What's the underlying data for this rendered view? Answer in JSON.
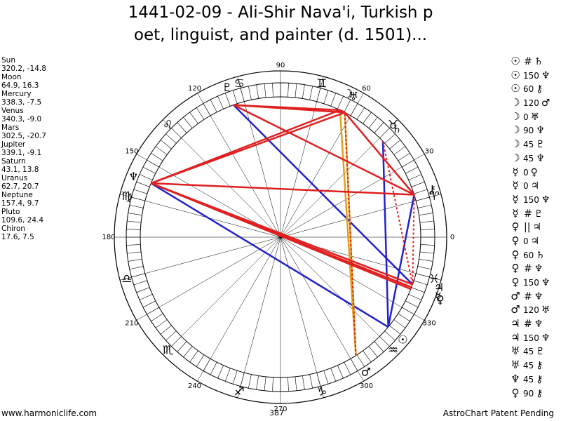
{
  "title": {
    "line1": "1441-02-09 - Ali-Shir Nava'i, Turkish p",
    "line2": "oet, linguist, and painter (d. 1501)..."
  },
  "planets": [
    {
      "name": "Sun",
      "position": "320.2, -14.8",
      "lon": 320.2,
      "glyph": "☉"
    },
    {
      "name": "Moon",
      "position": "64.9, 16.3",
      "lon": 64.9,
      "glyph": "☽"
    },
    {
      "name": "Mercury",
      "position": "338.3, -7.5",
      "lon": 338.3,
      "glyph": "☿"
    },
    {
      "name": "Venus",
      "position": "340.3, -9.0",
      "lon": 340.3,
      "glyph": "♀"
    },
    {
      "name": "Mars",
      "position": "302.5, -20.7",
      "lon": 302.5,
      "glyph": "♂"
    },
    {
      "name": "Jupiter",
      "position": "339.1, -9.1",
      "lon": 339.1,
      "glyph": "♃"
    },
    {
      "name": "Saturn",
      "position": "43.1, 13.8",
      "lon": 43.1,
      "glyph": "♄"
    },
    {
      "name": "Uranus",
      "position": "62.7, 20.7",
      "lon": 62.7,
      "glyph": "♅"
    },
    {
      "name": "Neptune",
      "position": "157.4, 9.7",
      "lon": 157.4,
      "glyph": "♆"
    },
    {
      "name": "Pluto",
      "position": "109.6, 24.4",
      "lon": 109.6,
      "glyph": "♇"
    },
    {
      "name": "Chiron",
      "position": "17.6, 7.5",
      "lon": 17.6,
      "glyph": "⚷"
    }
  ],
  "aspects": [
    {
      "g1": "☉",
      "angle": "",
      "g2": "#",
      "p2": "♄"
    },
    {
      "g1": "☉",
      "angle": "150",
      "g2": "♆",
      "p2": ""
    },
    {
      "g1": "☉",
      "angle": "60",
      "g2": "⚷",
      "p2": ""
    },
    {
      "g1": "☽",
      "angle": "120",
      "g2": "♂",
      "p2": ""
    },
    {
      "g1": "☽",
      "angle": "0",
      "g2": "♅",
      "p2": ""
    },
    {
      "g1": "☽",
      "angle": "90",
      "g2": "♆",
      "p2": ""
    },
    {
      "g1": "☽",
      "angle": "45",
      "g2": "♇",
      "p2": ""
    },
    {
      "g1": "☽",
      "angle": "45",
      "g2": "♆",
      "p2": ""
    },
    {
      "g1": "☿",
      "angle": "0",
      "g2": "♀",
      "p2": ""
    },
    {
      "g1": "☿",
      "angle": "0",
      "g2": "♃",
      "p2": ""
    },
    {
      "g1": "☿",
      "angle": "150",
      "g2": "♆",
      "p2": ""
    },
    {
      "g1": "☿",
      "angle": "",
      "g2": "#",
      "p2": "♇"
    },
    {
      "g1": "♀",
      "angle": "",
      "g2": "||",
      "p2": "♃"
    },
    {
      "g1": "♀",
      "angle": "0",
      "g2": "♃",
      "p2": ""
    },
    {
      "g1": "♀",
      "angle": "60",
      "g2": "♄",
      "p2": ""
    },
    {
      "g1": "♀",
      "angle": "",
      "g2": "#",
      "p2": "♆"
    },
    {
      "g1": "♀",
      "angle": "150",
      "g2": "♆",
      "p2": ""
    },
    {
      "g1": "♂",
      "angle": "",
      "g2": "#",
      "p2": "♆"
    },
    {
      "g1": "♂",
      "angle": "120",
      "g2": "♅",
      "p2": ""
    },
    {
      "g1": "♃",
      "angle": "",
      "g2": "#",
      "p2": "♆"
    },
    {
      "g1": "♃",
      "angle": "150",
      "g2": "♆",
      "p2": ""
    },
    {
      "g1": "♅",
      "angle": "45",
      "g2": "♇",
      "p2": ""
    },
    {
      "g1": "♅",
      "angle": "45",
      "g2": "⚷",
      "p2": ""
    },
    {
      "g1": "♆",
      "angle": "45",
      "g2": "⚷",
      "p2": ""
    },
    {
      "g1": "♀",
      "angle": "90",
      "g2": "⚷",
      "p2": ""
    }
  ],
  "degree_labels": [
    {
      "text": "0",
      "deg": 0
    },
    {
      "text": "30",
      "deg": 30
    },
    {
      "text": "60",
      "deg": 60
    },
    {
      "text": "90",
      "deg": 90
    },
    {
      "text": "120",
      "deg": 120
    },
    {
      "text": "150",
      "deg": 150
    },
    {
      "text": "180",
      "deg": 180
    },
    {
      "text": "210",
      "deg": 210
    },
    {
      "text": "240",
      "deg": 240
    },
    {
      "text": "270",
      "deg": 270
    },
    {
      "text": "300",
      "deg": 300
    },
    {
      "text": "330",
      "deg": 330
    }
  ],
  "signs": [
    {
      "glyph": "♈",
      "lon": 15
    },
    {
      "glyph": "♉",
      "lon": 45
    },
    {
      "glyph": "♊",
      "lon": 75
    },
    {
      "glyph": "♋",
      "lon": 105
    },
    {
      "glyph": "♌",
      "lon": 135
    },
    {
      "glyph": "♍",
      "lon": 165
    },
    {
      "glyph": "♎",
      "lon": 195
    },
    {
      "glyph": "♏",
      "lon": 225
    },
    {
      "glyph": "♐",
      "lon": 255
    },
    {
      "glyph": "♑",
      "lon": 285
    },
    {
      "glyph": "♒",
      "lon": 315
    },
    {
      "glyph": "♓",
      "lon": 345
    }
  ],
  "aspect_lines": [
    {
      "a": "Sun",
      "b": "Saturn",
      "color": "#2222cc",
      "style": "solid"
    },
    {
      "a": "Sun",
      "b": "Neptune",
      "color": "#2222cc",
      "style": "solid"
    },
    {
      "a": "Sun",
      "b": "Chiron",
      "color": "#2222cc",
      "style": "solid"
    },
    {
      "a": "Pluto",
      "b": "Venus",
      "color": "#2222cc",
      "style": "solid"
    },
    {
      "a": "Uranus",
      "b": "Mars",
      "color": "#e0a020",
      "style": "solid"
    },
    {
      "a": "Moon",
      "b": "Mars",
      "color": "#e0a020",
      "style": "solid"
    },
    {
      "a": "Moon",
      "b": "Uranus",
      "color": "#e02020",
      "style": "solid"
    },
    {
      "a": "Moon",
      "b": "Pluto",
      "color": "#e02020",
      "style": "solid"
    },
    {
      "a": "Moon",
      "b": "Neptune",
      "color": "#e02020",
      "style": "solid"
    },
    {
      "a": "Uranus",
      "b": "Pluto",
      "color": "#e02020",
      "style": "solid"
    },
    {
      "a": "Uranus",
      "b": "Neptune",
      "color": "#e02020",
      "style": "solid"
    },
    {
      "a": "Uranus",
      "b": "Chiron",
      "color": "#e02020",
      "style": "solid"
    },
    {
      "a": "Neptune",
      "b": "Chiron",
      "color": "#e02020",
      "style": "solid"
    },
    {
      "a": "Pluto",
      "b": "Chiron",
      "color": "#e02020",
      "style": "solid"
    },
    {
      "a": "Neptune",
      "b": "Mercury",
      "color": "#e02020",
      "style": "solid"
    },
    {
      "a": "Neptune",
      "b": "Venus",
      "color": "#e02020",
      "style": "solid"
    },
    {
      "a": "Neptune",
      "b": "Jupiter",
      "color": "#e02020",
      "style": "solid"
    },
    {
      "a": "Neptune",
      "b": "Mercury",
      "color": "#e02020",
      "style": "dotted"
    },
    {
      "a": "Mars",
      "b": "Uranus",
      "color": "#e02020",
      "style": "dotted"
    },
    {
      "a": "Saturn",
      "b": "Venus",
      "color": "#e02020",
      "style": "dotted"
    },
    {
      "a": "Chiron",
      "b": "Venus",
      "color": "#e02020",
      "style": "dotted"
    }
  ],
  "colors": {
    "ring": "#000000",
    "blue": "#2222cc",
    "red": "#e02020",
    "orange": "#e0a020"
  },
  "center_label": "387",
  "footer": {
    "left": "www.harmoniclife.com",
    "right": "AstroChart Patent Pending"
  }
}
